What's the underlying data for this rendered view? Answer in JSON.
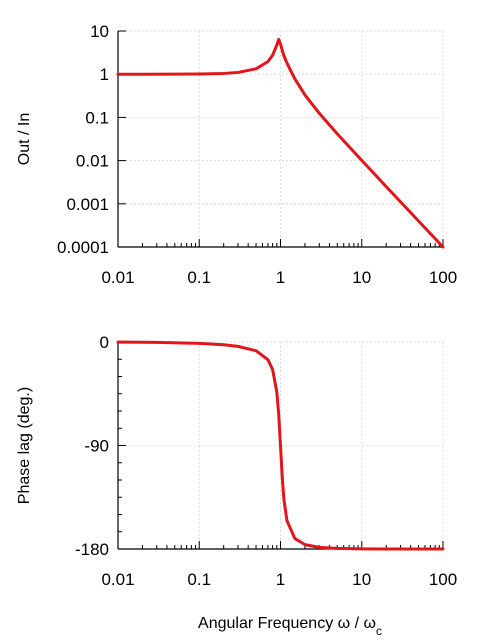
{
  "chart_data": [
    {
      "type": "line",
      "title": "",
      "ylabel": "Out / In",
      "xlabel": "",
      "x_scale": "log",
      "y_scale": "log",
      "xlim": [
        0.01,
        100
      ],
      "ylim": [
        0.0001,
        10
      ],
      "x_ticks": [
        "0.01",
        "0.1",
        "1",
        "10",
        "100"
      ],
      "y_ticks": [
        "10",
        "1",
        "0.1",
        "0.01",
        "0.001",
        "0.0001"
      ],
      "grid": true,
      "line_color": "#e0161b",
      "series": [
        {
          "x": [
            0.01,
            0.02,
            0.05,
            0.1,
            0.2,
            0.3,
            0.5,
            0.7,
            0.8,
            0.9,
            0.95,
            1.0,
            1.05,
            1.1,
            1.2,
            1.5,
            2,
            3,
            5,
            10,
            20,
            50,
            100
          ],
          "values": [
            1.0,
            1.0,
            1.0025,
            1.0101,
            1.0415,
            1.0986,
            1.3328,
            1.9567,
            2.7541,
            4.6948,
            6.4035,
            5.0,
            3.5896,
            2.7003,
            1.8061,
            0.7839,
            0.3318,
            0.1246,
            0.0416,
            0.0101,
            0.0025,
            0.0004,
            0.0001
          ]
        }
      ]
    },
    {
      "type": "line",
      "title": "",
      "ylabel": "Phase lag  (deg.)",
      "xlabel": "Angular Frequency  ω / ωc",
      "x_scale": "log",
      "xlim": [
        0.01,
        100
      ],
      "ylim": [
        -180,
        0
      ],
      "x_ticks": [
        "0.01",
        "0.1",
        "1",
        "10",
        "100"
      ],
      "y_ticks": [
        "0",
        "-90",
        "-180"
      ],
      "grid": true,
      "line_color": "#e0161b",
      "series": [
        {
          "x": [
            0.01,
            0.03,
            0.1,
            0.2,
            0.3,
            0.5,
            0.7,
            0.8,
            0.9,
            0.95,
            1.0,
            1.05,
            1.1,
            1.2,
            1.5,
            2,
            3,
            5,
            10,
            30,
            100
          ],
          "values": [
            -0.1,
            -0.3,
            -1.2,
            -2.4,
            -3.8,
            -7.6,
            -15.4,
            -23.9,
            -43.4,
            -62.5,
            -90,
            -117.3,
            -136.4,
            -155.3,
            -170.8,
            -176.2,
            -178.6,
            -179.5,
            -179.9,
            -180,
            -180
          ]
        }
      ]
    }
  ]
}
